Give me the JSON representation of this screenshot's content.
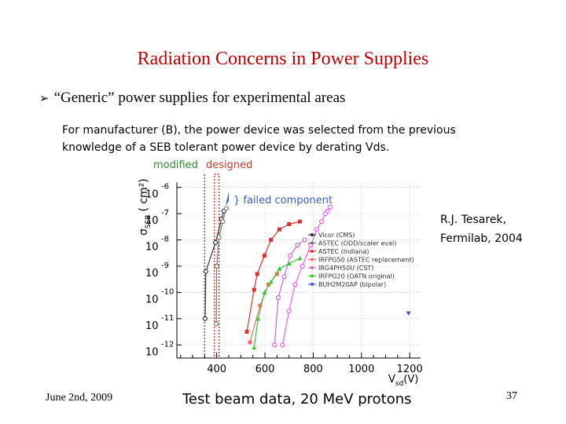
{
  "slide": {
    "title": "Radiation Concerns in Power Supplies",
    "bullet": "“Generic” power supplies for experimental areas",
    "description": "For manufacturer (B), the power device was selected from the previous knowledge of a SEB tolerant power device by derating Vds.",
    "credit_line1": "R.J. Tesarek,",
    "credit_line2": "Fermilab, 2004",
    "date": "June 2nd, 2009",
    "caption": "Test beam data, 20 MeV protons",
    "page_number": "37"
  },
  "chart_data": {
    "type": "scatter",
    "title": "",
    "xlabel": "V",
    "xlabel_sub": "sd",
    "xlabel_suffix": "(V)",
    "ylabel": "σ",
    "ylabel_sub": "SEB",
    "ylabel_suffix": "( cm²)",
    "x_ticks": [
      "400",
      "600",
      "800",
      "1000",
      "1200"
    ],
    "x_tick_values": [
      400,
      600,
      800,
      1000,
      1200
    ],
    "y_tick_exponents": [
      "-6",
      "-7",
      "-8",
      "-9",
      "-10",
      "-11",
      "-12"
    ],
    "y_tick_base": "10",
    "y_tick_values": [
      -6,
      -7,
      -8,
      -9,
      -10,
      -11,
      -12
    ],
    "xlim": [
      235,
      1245
    ],
    "ylim_log10": [
      -12.5,
      -5.8
    ],
    "y_scale": "log",
    "annotations": {
      "modified": "modified",
      "designed": "designed",
      "failed_component": "} failed component",
      "modified_voltage": 350,
      "designed_voltage": 400,
      "modified_color": "#2e8b2e",
      "designed_color": "#c0392b"
    },
    "legend_position": "center-right",
    "series": [
      {
        "name": "Vicor (CMS)",
        "color": "#333333",
        "marker": "o",
        "points": [
          [
            352,
            -11.0
          ],
          [
            355,
            -9.2
          ],
          [
            395,
            -8.1
          ],
          [
            420,
            -7.2
          ],
          [
            430,
            -6.9
          ]
        ]
      },
      {
        "name": "ASTEC (ODD/scaler eval)",
        "color": "#777777",
        "marker": "o",
        "points": [
          [
            398,
            -11.2
          ],
          [
            400,
            -9.0
          ],
          [
            410,
            -7.9
          ],
          [
            425,
            -7.3
          ],
          [
            440,
            -6.8
          ]
        ]
      },
      {
        "name": "ASTEC (Indiana)",
        "color": "#e03030",
        "marker": "s",
        "points": [
          [
            525,
            -11.5
          ],
          [
            555,
            -9.9
          ],
          [
            568,
            -9.3
          ],
          [
            598,
            -8.6
          ],
          [
            625,
            -8.0
          ],
          [
            660,
            -7.6
          ],
          [
            700,
            -7.4
          ],
          [
            745,
            -7.3
          ]
        ]
      },
      {
        "name": "IRFPG50 (ASTEC replacement)",
        "color": "#ff6666",
        "marker": "s",
        "points": [
          [
            538,
            -11.9
          ],
          [
            580,
            -10.5
          ],
          [
            615,
            -9.7
          ],
          [
            650,
            -9.3
          ]
        ]
      },
      {
        "name": "IRG4PH50U (CST)",
        "color": "#cc66cc",
        "marker": "o",
        "points": [
          [
            640,
            -12.0
          ],
          [
            655,
            -10.2
          ],
          [
            680,
            -9.4
          ],
          [
            705,
            -8.6
          ],
          [
            735,
            -8.2
          ],
          [
            765,
            -8.0
          ]
        ]
      },
      {
        "name": "IRFPG20 (OATN original)",
        "color": "#33cc33",
        "marker": "^",
        "points": [
          [
            555,
            -12.1
          ],
          [
            572,
            -11.0
          ],
          [
            598,
            -10.0
          ],
          [
            625,
            -9.6
          ],
          [
            660,
            -9.1
          ],
          [
            700,
            -8.9
          ],
          [
            745,
            -8.7
          ]
        ]
      },
      {
        "name": "BUH2M20AP (bipolar)",
        "color": "#4455cc",
        "marker": "v",
        "points": [
          [
            1195,
            -10.8
          ]
        ]
      },
      {
        "name": "",
        "color": "#ff55ff",
        "marker": "o",
        "points": [
          [
            673,
            -12.0
          ],
          [
            700,
            -10.7
          ],
          [
            725,
            -9.7
          ],
          [
            755,
            -9.0
          ],
          [
            790,
            -8.2
          ],
          [
            815,
            -7.6
          ],
          [
            835,
            -7.3
          ],
          [
            850,
            -7.0
          ],
          [
            860,
            -6.9
          ],
          [
            870,
            -6.75
          ]
        ]
      }
    ]
  }
}
